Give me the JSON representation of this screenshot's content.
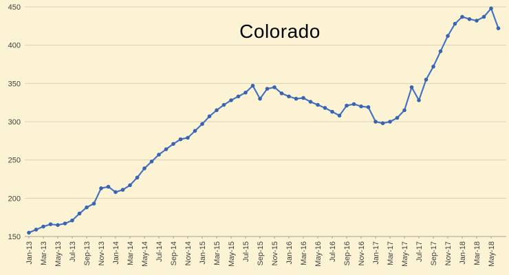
{
  "colors": {
    "background": "#FCF3D5",
    "gridline": "#D9D1B6",
    "axis_line": "#A9A28A",
    "series_line": "#4472C4",
    "marker": "#3B64AE",
    "axis_text": "#404040",
    "title_text": "#000000"
  },
  "chart_data": {
    "type": "line",
    "title": "Colorado",
    "xlabel": "",
    "ylabel": "",
    "ylim": [
      150,
      450
    ],
    "ytick_step": 50,
    "xtick_every": 2,
    "grid": true,
    "legend_position": "none",
    "x": [
      "Jan-13",
      "Feb-13",
      "Mar-13",
      "Apr-13",
      "May-13",
      "Jun-13",
      "Jul-13",
      "Aug-13",
      "Sep-13",
      "Oct-13",
      "Nov-13",
      "Dec-13",
      "Jan-14",
      "Feb-14",
      "Mar-14",
      "Apr-14",
      "May-14",
      "Jun-14",
      "Jul-14",
      "Aug-14",
      "Sep-14",
      "Oct-14",
      "Nov-14",
      "Dec-14",
      "Jan-15",
      "Feb-15",
      "Mar-15",
      "Apr-15",
      "May-15",
      "Jun-15",
      "Jul-15",
      "Aug-15",
      "Sep-15",
      "Oct-15",
      "Nov-15",
      "Dec-15",
      "Jan-16",
      "Feb-16",
      "Mar-16",
      "Apr-16",
      "May-16",
      "Jun-16",
      "Jul-16",
      "Aug-16",
      "Sep-16",
      "Oct-16",
      "Nov-16",
      "Dec-16",
      "Jan-17",
      "Feb-17",
      "Mar-17",
      "Apr-17",
      "May-17",
      "Jun-17",
      "Jul-17",
      "Aug-17",
      "Sep-17",
      "Oct-17",
      "Nov-17",
      "Dec-17",
      "Jan-18",
      "Feb-18",
      "Mar-18",
      "Apr-18",
      "May-18",
      "Jun-18"
    ],
    "values": [
      155,
      159,
      163,
      166,
      165,
      167,
      171,
      180,
      188,
      193,
      213,
      215,
      208,
      211,
      217,
      227,
      239,
      248,
      257,
      264,
      271,
      277,
      279,
      288,
      297,
      307,
      315,
      322,
      328,
      333,
      338,
      347,
      330,
      343,
      345,
      337,
      333,
      330,
      331,
      326,
      322,
      318,
      313,
      308,
      321,
      323,
      320,
      319,
      300,
      298,
      300,
      305,
      315,
      345,
      328,
      355,
      372,
      392,
      412,
      428,
      437,
      434,
      432,
      437,
      448,
      422
    ]
  }
}
